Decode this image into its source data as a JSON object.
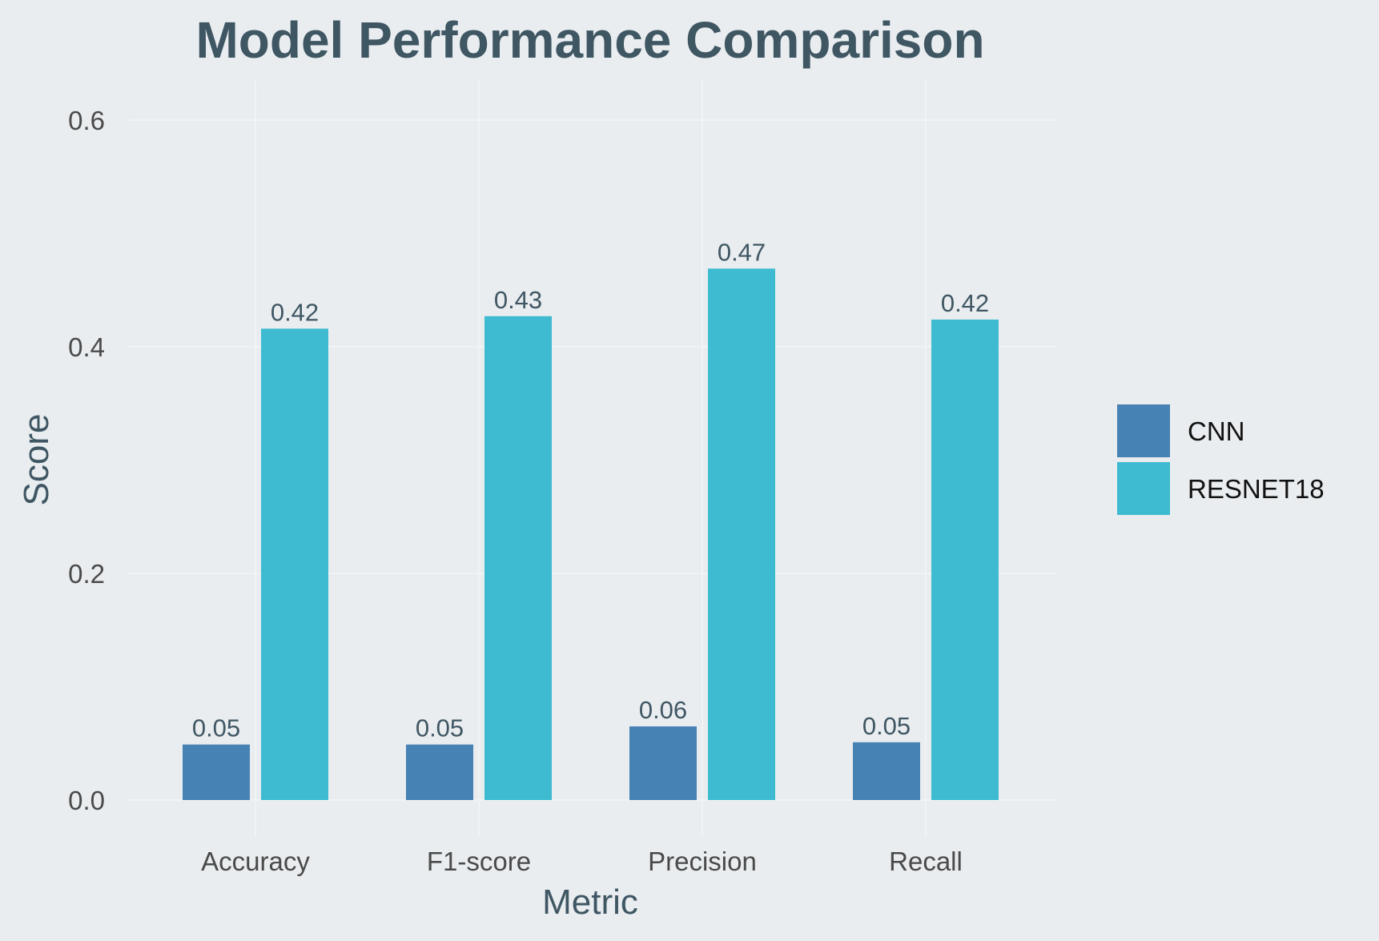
{
  "chart_data": {
    "type": "bar",
    "title": "Model Performance Comparison",
    "xlabel": "Metric",
    "ylabel": "Score",
    "categories": [
      "Accuracy",
      "F1-score",
      "Precision",
      "Recall"
    ],
    "series": [
      {
        "name": "CNN",
        "color": "#4682b4",
        "values": [
          0.049,
          0.049,
          0.065,
          0.051
        ],
        "labels": [
          "0.05",
          "0.05",
          "0.06",
          "0.05"
        ]
      },
      {
        "name": "RESNET18",
        "color": "#3ebbd1",
        "values": [
          0.416,
          0.427,
          0.469,
          0.424
        ],
        "labels": [
          "0.42",
          "0.43",
          "0.47",
          "0.42"
        ]
      }
    ],
    "ylim": [
      0,
      0.6
    ],
    "yticks": [
      0.0,
      0.2,
      0.4,
      0.6
    ],
    "ytick_labels": [
      "0.0",
      "0.2",
      "0.4",
      "0.6"
    ],
    "grid": true,
    "legend_position": "right"
  }
}
